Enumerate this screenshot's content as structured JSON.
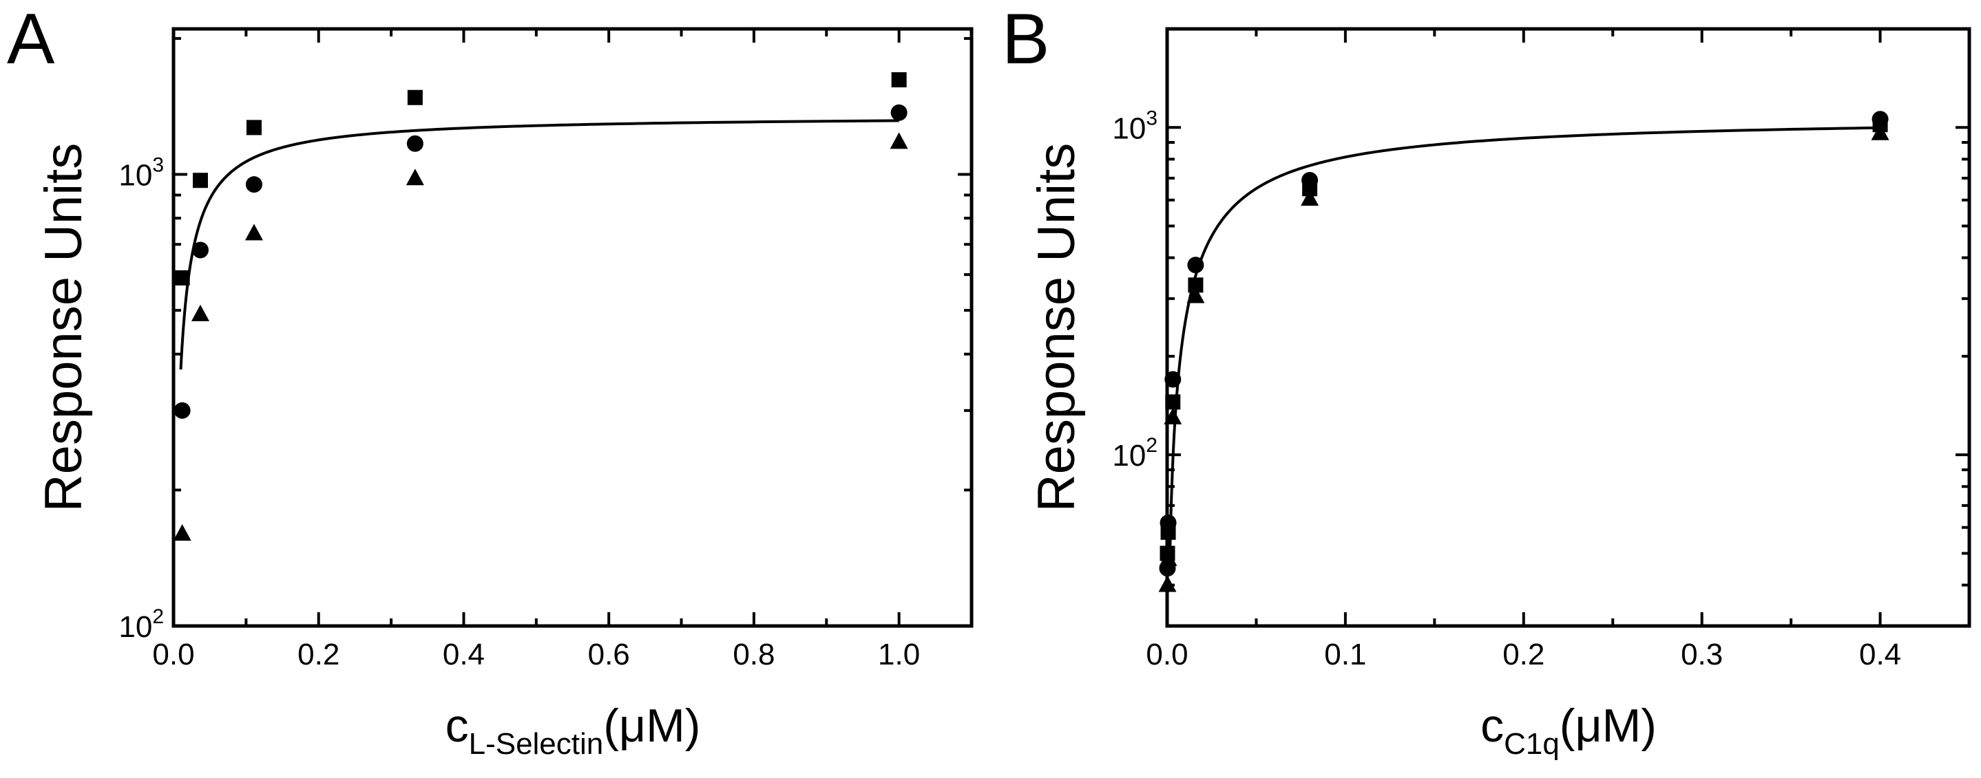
{
  "chart_data": [
    {
      "panel": "A",
      "type": "scatter",
      "ylabel": "Response Units",
      "xlabel": {
        "base": "c",
        "sub": "L-Selectin",
        "unit": "(μM)"
      },
      "xlim": [
        0,
        1.1
      ],
      "ylim": [
        100,
        2100
      ],
      "yscale": "log",
      "xticks": [
        0.0,
        0.2,
        0.4,
        0.6,
        0.8,
        1.0
      ],
      "xtick_labels": [
        "0.0",
        "0.2",
        "0.4",
        "0.6",
        "0.8",
        "1.0"
      ],
      "yticks": [
        {
          "value": 100,
          "base": "10",
          "exp": "2"
        },
        {
          "value": 1000,
          "base": "10",
          "exp": "3"
        }
      ],
      "series": [
        {
          "name": "squares",
          "marker": "square",
          "x": [
            0.012,
            0.037,
            0.111,
            0.333,
            1.0
          ],
          "y": [
            590,
            970,
            1270,
            1480,
            1620
          ]
        },
        {
          "name": "circles",
          "marker": "circle",
          "x": [
            0.012,
            0.037,
            0.111,
            0.333,
            1.0
          ],
          "y": [
            300,
            680,
            950,
            1170,
            1370
          ]
        },
        {
          "name": "triangles",
          "marker": "triangle",
          "x": [
            0.012,
            0.037,
            0.111,
            0.333,
            1.0
          ],
          "y": [
            160,
            490,
            740,
            980,
            1180
          ]
        }
      ],
      "fit": {
        "type": "langmuir",
        "rmax": 1350,
        "kd": 0.0265,
        "x_start": 0.01,
        "x_end": 1.0
      }
    },
    {
      "panel": "B",
      "type": "scatter",
      "ylabel": "Response Units",
      "xlabel": {
        "base": "c",
        "sub": "C1q",
        "unit": "(μM)"
      },
      "xlim": [
        0,
        0.45
      ],
      "ylim": [
        30,
        2000
      ],
      "yscale": "log",
      "xticks": [
        0.0,
        0.1,
        0.2,
        0.3,
        0.4
      ],
      "xtick_labels": [
        "0.0",
        "0.1",
        "0.2",
        "0.3",
        "0.4"
      ],
      "yticks": [
        {
          "value": 100,
          "base": "10",
          "exp": "2"
        },
        {
          "value": 1000,
          "base": "10",
          "exp": "3"
        }
      ],
      "series": [
        {
          "name": "squares",
          "marker": "square",
          "x": [
            0.0002,
            0.0006,
            0.0032,
            0.016,
            0.08,
            0.4
          ],
          "y": [
            50,
            58,
            145,
            330,
            650,
            1020
          ]
        },
        {
          "name": "circles",
          "marker": "circle",
          "x": [
            0.0002,
            0.0006,
            0.0032,
            0.016,
            0.08,
            0.4
          ],
          "y": [
            45,
            62,
            170,
            380,
            690,
            1060
          ]
        },
        {
          "name": "triangles",
          "marker": "triangle",
          "x": [
            0.0002,
            0.0006,
            0.0032,
            0.016,
            0.08,
            0.4
          ],
          "y": [
            40,
            48,
            130,
            305,
            605,
            960
          ]
        }
      ],
      "fit": {
        "type": "langmuir",
        "rmax": 1080,
        "kd": 0.033,
        "x_start": 0.0015,
        "x_end": 0.4
      }
    }
  ]
}
